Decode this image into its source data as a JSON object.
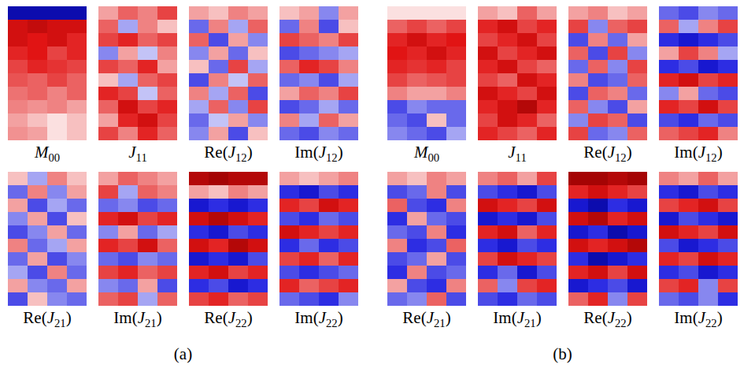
{
  "chart_data": [
    {
      "type": "heatmap",
      "panel": "(a)",
      "title": "M00",
      "tick_labels": false,
      "clim": [
        -1,
        1
      ],
      "cells": [
        [
          -0.9,
          -0.9,
          -0.9,
          -0.9
        ],
        [
          0.8,
          0.85,
          0.8,
          0.8
        ],
        [
          0.8,
          0.75,
          0.8,
          0.7
        ],
        [
          0.7,
          0.75,
          0.6,
          0.7
        ],
        [
          0.6,
          0.7,
          0.65,
          0.6
        ],
        [
          0.55,
          0.5,
          0.6,
          0.5
        ],
        [
          0.45,
          0.5,
          0.4,
          0.5
        ],
        [
          0.4,
          0.35,
          0.4,
          0.3
        ],
        [
          0.3,
          0.2,
          0.1,
          0.2
        ],
        [
          0.35,
          0.3,
          0.1,
          0.2
        ]
      ]
    },
    {
      "type": "heatmap",
      "panel": "(a)",
      "title": "J11",
      "tick_labels": false,
      "clim": [
        -1,
        1
      ],
      "cells": [
        [
          0.3,
          0.5,
          0.4,
          0.6
        ],
        [
          0.5,
          -0.3,
          0.4,
          0.2
        ],
        [
          0.6,
          0.7,
          0.5,
          0.6
        ],
        [
          -0.4,
          0.3,
          -0.2,
          0.4
        ],
        [
          0.6,
          0.5,
          0.7,
          0.3
        ],
        [
          0.2,
          -0.3,
          0.5,
          0.6
        ],
        [
          0.7,
          0.6,
          -0.2,
          0.5
        ],
        [
          0.5,
          0.8,
          0.6,
          0.7
        ],
        [
          0.3,
          0.7,
          0.8,
          0.6
        ],
        [
          0.6,
          0.4,
          0.7,
          0.5
        ]
      ]
    },
    {
      "type": "heatmap",
      "panel": "(a)",
      "title": "Re(J12)",
      "tick_labels": false,
      "clim": [
        -1,
        1
      ],
      "cells": [
        [
          0.3,
          0.2,
          0.4,
          0.3
        ],
        [
          -0.5,
          0.4,
          -0.3,
          0.5
        ],
        [
          0.5,
          -0.6,
          0.3,
          -0.4
        ],
        [
          -0.4,
          0.3,
          -0.5,
          0.2
        ],
        [
          0.2,
          -0.5,
          0.6,
          -0.3
        ],
        [
          -0.6,
          0.4,
          -0.2,
          0.5
        ],
        [
          0.4,
          -0.3,
          0.5,
          -0.6
        ],
        [
          -0.3,
          0.5,
          -0.4,
          0.6
        ],
        [
          -0.5,
          -0.2,
          0.3,
          -0.4
        ],
        [
          -0.4,
          0.3,
          -0.6,
          0.2
        ]
      ]
    },
    {
      "type": "heatmap",
      "panel": "(a)",
      "title": "Im(J12)",
      "tick_labels": false,
      "clim": [
        -1,
        1
      ],
      "cells": [
        [
          0.2,
          0.3,
          -0.4,
          0.3
        ],
        [
          -0.5,
          0.4,
          -0.6,
          0.2
        ],
        [
          0.6,
          0.5,
          0.4,
          0.6
        ],
        [
          -0.6,
          -0.5,
          -0.4,
          -0.3
        ],
        [
          0.5,
          0.7,
          0.6,
          0.4
        ],
        [
          -0.5,
          -0.4,
          -0.6,
          -0.3
        ],
        [
          0.3,
          0.5,
          0.4,
          0.6
        ],
        [
          -0.6,
          -0.5,
          -0.3,
          -0.5
        ],
        [
          0.4,
          -0.3,
          0.5,
          0.3
        ],
        [
          -0.5,
          -0.6,
          -0.4,
          -0.5
        ]
      ]
    },
    {
      "type": "heatmap",
      "panel": "(a)",
      "title": "Re(J21)",
      "tick_labels": false,
      "clim": [
        -1,
        1
      ],
      "cells": [
        [
          0.2,
          -0.3,
          0.4,
          0.2
        ],
        [
          -0.5,
          0.4,
          -0.4,
          0.3
        ],
        [
          0.3,
          -0.6,
          -0.3,
          -0.5
        ],
        [
          -0.4,
          0.3,
          -0.6,
          0.2
        ],
        [
          -0.6,
          -0.4,
          0.3,
          -0.5
        ],
        [
          0.4,
          -0.5,
          -0.3,
          0.3
        ],
        [
          -0.5,
          0.3,
          -0.6,
          -0.4
        ],
        [
          -0.3,
          -0.6,
          0.4,
          -0.5
        ],
        [
          0.3,
          -0.4,
          -0.5,
          0.3
        ],
        [
          -0.6,
          0.2,
          -0.4,
          -0.5
        ]
      ]
    },
    {
      "type": "heatmap",
      "panel": "(a)",
      "title": "Im(J21)",
      "tick_labels": false,
      "clim": [
        -1,
        1
      ],
      "cells": [
        [
          0.3,
          0.5,
          0.4,
          0.3
        ],
        [
          0.6,
          -0.3,
          0.5,
          0.4
        ],
        [
          -0.5,
          -0.4,
          -0.6,
          -0.5
        ],
        [
          0.7,
          0.8,
          0.6,
          0.7
        ],
        [
          -0.4,
          0.3,
          -0.5,
          -0.3
        ],
        [
          0.7,
          0.6,
          0.8,
          0.5
        ],
        [
          -0.5,
          -0.6,
          -0.4,
          -0.5
        ],
        [
          0.6,
          0.7,
          0.5,
          0.6
        ],
        [
          -0.4,
          -0.5,
          0.3,
          -0.6
        ],
        [
          0.5,
          0.6,
          -0.3,
          0.5
        ]
      ]
    },
    {
      "type": "heatmap",
      "panel": "(a)",
      "title": "Re(J22)",
      "tick_labels": false,
      "clim": [
        -1,
        1
      ],
      "cells": [
        [
          0.9,
          0.95,
          0.9,
          0.9
        ],
        [
          0.3,
          0.2,
          0.4,
          0.3
        ],
        [
          -0.8,
          -0.7,
          -0.8,
          -0.7
        ],
        [
          0.8,
          0.9,
          0.8,
          0.7
        ],
        [
          -0.7,
          -0.8,
          -0.6,
          -0.7
        ],
        [
          0.8,
          0.7,
          0.9,
          0.8
        ],
        [
          -0.8,
          -0.7,
          -0.8,
          -0.6
        ],
        [
          0.7,
          0.8,
          0.6,
          0.7
        ],
        [
          -0.7,
          -0.6,
          -0.8,
          -0.7
        ],
        [
          0.6,
          0.7,
          0.5,
          0.6
        ]
      ]
    },
    {
      "type": "heatmap",
      "panel": "(a)",
      "title": "Im(J22)",
      "tick_labels": false,
      "clim": [
        -1,
        1
      ],
      "cells": [
        [
          0.3,
          0.2,
          0.3,
          0.4
        ],
        [
          -0.7,
          -0.8,
          -0.6,
          -0.7
        ],
        [
          0.7,
          0.6,
          0.8,
          0.7
        ],
        [
          -0.6,
          -0.7,
          -0.5,
          -0.6
        ],
        [
          0.8,
          0.7,
          0.6,
          0.7
        ],
        [
          -0.7,
          -0.5,
          -0.7,
          -0.6
        ],
        [
          0.6,
          0.7,
          0.5,
          0.7
        ],
        [
          -0.6,
          -0.7,
          -0.6,
          -0.5
        ],
        [
          0.7,
          0.5,
          0.6,
          0.7
        ],
        [
          -0.5,
          -0.6,
          -0.7,
          -0.4
        ]
      ]
    },
    {
      "type": "heatmap",
      "panel": "(b)",
      "title": "M00",
      "tick_labels": false,
      "clim": [
        -1,
        1
      ],
      "cells": [
        [
          0.1,
          0.1,
          0.1,
          0.1
        ],
        [
          0.5,
          0.6,
          0.5,
          0.6
        ],
        [
          0.7,
          0.8,
          0.7,
          0.75
        ],
        [
          0.75,
          0.7,
          0.8,
          0.7
        ],
        [
          0.7,
          0.65,
          0.7,
          0.6
        ],
        [
          0.6,
          0.5,
          0.55,
          0.6
        ],
        [
          0.4,
          0.3,
          0.3,
          0.4
        ],
        [
          -0.6,
          -0.4,
          -0.5,
          -0.5
        ],
        [
          -0.5,
          -0.6,
          0.2,
          -0.5
        ],
        [
          -0.4,
          -0.5,
          -0.6,
          -0.3
        ]
      ]
    },
    {
      "type": "heatmap",
      "panel": "(b)",
      "title": "J11",
      "tick_labels": false,
      "clim": [
        -1,
        1
      ],
      "cells": [
        [
          0.3,
          0.2,
          0.5,
          0.3
        ],
        [
          0.7,
          0.8,
          0.6,
          0.7
        ],
        [
          0.6,
          0.7,
          0.8,
          0.6
        ],
        [
          0.8,
          0.6,
          0.7,
          0.8
        ],
        [
          0.7,
          0.8,
          0.6,
          0.5
        ],
        [
          0.6,
          0.5,
          0.8,
          0.7
        ],
        [
          0.8,
          0.7,
          0.6,
          0.8
        ],
        [
          0.7,
          0.8,
          0.9,
          0.7
        ],
        [
          0.6,
          0.8,
          0.7,
          0.5
        ],
        [
          0.7,
          0.6,
          0.5,
          0.7
        ]
      ]
    },
    {
      "type": "heatmap",
      "panel": "(b)",
      "title": "Re(J12)",
      "tick_labels": false,
      "clim": [
        -1,
        1
      ],
      "cells": [
        [
          0.3,
          0.4,
          0.2,
          0.3
        ],
        [
          0.6,
          -0.4,
          0.5,
          0.6
        ],
        [
          -0.6,
          0.4,
          -0.5,
          0.3
        ],
        [
          0.5,
          -0.6,
          0.6,
          -0.4
        ],
        [
          -0.5,
          0.5,
          -0.4,
          0.6
        ],
        [
          0.4,
          -0.6,
          -0.5,
          0.5
        ],
        [
          -0.6,
          0.5,
          0.4,
          -0.5
        ],
        [
          0.5,
          -0.4,
          -0.6,
          0.3
        ],
        [
          -0.4,
          0.6,
          0.5,
          -0.6
        ],
        [
          0.6,
          -0.5,
          -0.4,
          0.5
        ]
      ]
    },
    {
      "type": "heatmap",
      "panel": "(b)",
      "title": "Im(J12)",
      "tick_labels": false,
      "clim": [
        -1,
        1
      ],
      "cells": [
        [
          -0.5,
          -0.6,
          -0.4,
          -0.5
        ],
        [
          0.5,
          -0.3,
          0.4,
          0.6
        ],
        [
          -0.7,
          -0.8,
          -0.7,
          -0.6
        ],
        [
          0.3,
          0.6,
          0.4,
          -0.3
        ],
        [
          -0.7,
          -0.6,
          -0.8,
          -0.7
        ],
        [
          0.7,
          0.8,
          0.6,
          0.7
        ],
        [
          -0.4,
          0.3,
          -0.5,
          -0.6
        ],
        [
          0.7,
          0.6,
          0.8,
          0.6
        ],
        [
          -0.6,
          -0.7,
          -0.5,
          -0.6
        ],
        [
          0.5,
          0.6,
          0.7,
          0.4
        ]
      ]
    },
    {
      "type": "heatmap",
      "panel": "(b)",
      "title": "Re(J21)",
      "tick_labels": false,
      "clim": [
        -1,
        1
      ],
      "cells": [
        [
          0.3,
          0.2,
          0.4,
          0.3
        ],
        [
          -0.6,
          -0.5,
          0.4,
          -0.6
        ],
        [
          0.5,
          -0.6,
          -0.7,
          0.4
        ],
        [
          -0.7,
          0.3,
          -0.5,
          -0.6
        ],
        [
          -0.5,
          -0.6,
          0.4,
          -0.7
        ],
        [
          0.4,
          -0.7,
          -0.6,
          0.5
        ],
        [
          -0.6,
          -0.5,
          0.3,
          -0.6
        ],
        [
          -0.7,
          0.4,
          -0.6,
          -0.5
        ],
        [
          0.3,
          -0.6,
          -0.7,
          0.4
        ],
        [
          -0.5,
          -0.4,
          0.5,
          -0.6
        ]
      ]
    },
    {
      "type": "heatmap",
      "panel": "(b)",
      "title": "Im(J21)",
      "tick_labels": false,
      "clim": [
        -1,
        1
      ],
      "cells": [
        [
          0.4,
          0.5,
          0.3,
          0.6
        ],
        [
          -0.6,
          -0.7,
          -0.8,
          -0.6
        ],
        [
          0.8,
          0.7,
          0.6,
          0.8
        ],
        [
          -0.8,
          -0.7,
          -0.8,
          -0.6
        ],
        [
          0.7,
          0.8,
          0.5,
          0.7
        ],
        [
          -0.7,
          -0.8,
          -0.6,
          -0.7
        ],
        [
          0.6,
          0.8,
          0.7,
          0.6
        ],
        [
          -0.7,
          -0.5,
          -0.8,
          -0.6
        ],
        [
          0.5,
          -0.4,
          0.6,
          0.7
        ],
        [
          -0.6,
          -0.7,
          -0.5,
          -0.6
        ]
      ]
    },
    {
      "type": "heatmap",
      "panel": "(b)",
      "title": "Re(J22)",
      "tick_labels": false,
      "clim": [
        -1,
        1
      ],
      "cells": [
        [
          0.95,
          0.95,
          0.9,
          0.95
        ],
        [
          0.7,
          0.8,
          0.7,
          0.6
        ],
        [
          -0.8,
          -0.9,
          -0.7,
          -0.8
        ],
        [
          0.8,
          0.9,
          0.7,
          0.8
        ],
        [
          -0.8,
          -0.7,
          -0.9,
          -0.8
        ],
        [
          0.8,
          0.7,
          0.8,
          0.9
        ],
        [
          -0.7,
          -0.9,
          -0.8,
          -0.7
        ],
        [
          0.7,
          0.8,
          0.6,
          0.8
        ],
        [
          -0.8,
          -0.7,
          -0.6,
          -0.8
        ],
        [
          0.5,
          0.7,
          -0.4,
          0.6
        ]
      ]
    },
    {
      "type": "heatmap",
      "panel": "(b)",
      "title": "Im(J22)",
      "tick_labels": false,
      "clim": [
        -1,
        1
      ],
      "cells": [
        [
          0.4,
          0.3,
          0.5,
          0.3
        ],
        [
          -0.7,
          -0.8,
          -0.6,
          -0.7
        ],
        [
          0.6,
          0.7,
          0.8,
          0.6
        ],
        [
          -0.8,
          -0.6,
          -0.7,
          -0.8
        ],
        [
          0.8,
          0.7,
          0.6,
          0.8
        ],
        [
          -0.6,
          -0.8,
          -0.7,
          -0.6
        ],
        [
          0.7,
          0.6,
          0.8,
          0.7
        ],
        [
          -0.7,
          -0.6,
          -0.8,
          -0.7
        ],
        [
          0.6,
          0.7,
          -0.4,
          0.6
        ],
        [
          -0.5,
          -0.6,
          -0.4,
          -0.7
        ]
      ]
    }
  ]
}
